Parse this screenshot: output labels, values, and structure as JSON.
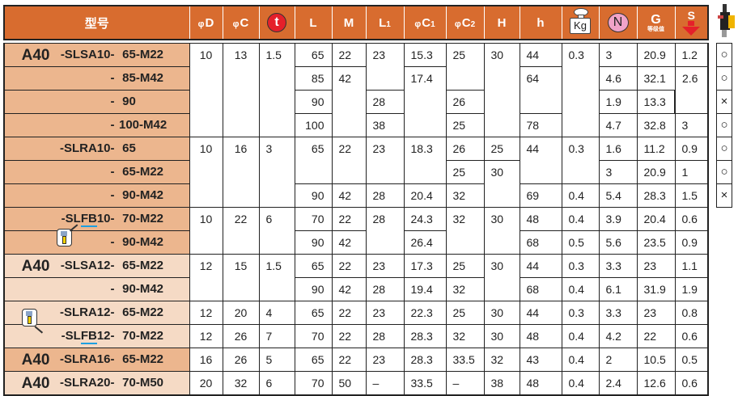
{
  "header": {
    "model": "型号",
    "phi": "φ",
    "D": "D",
    "C": "C",
    "t": "t",
    "L": "L",
    "M": "M",
    "L1_main": "L",
    "L1_sub": "1",
    "C1_main": "C",
    "C1_sub": "1",
    "C2_main": "C",
    "C2_sub": "2",
    "H": "H",
    "h": "h",
    "kg": "Kg",
    "N": "N",
    "G": "G",
    "G_sub": "等级值",
    "S": "S"
  },
  "icons": [
    "weight-kg-icon",
    "down-arrow-icon",
    "machine-tool-icon",
    "insert-tool-icon"
  ],
  "colors": {
    "header": "#d86c2f",
    "row_dark": "#ecb68e",
    "row_light": "#f5dac5",
    "underline": "#1ea0e0",
    "t_badge": "#e5202a",
    "n_badge": "#f0a3c8"
  },
  "rows": [
    {
      "shade": "dark",
      "prefix": "A40",
      "series": [
        "-SLSA10-"
      ],
      "size": " 65-M22",
      "cells": [
        "10",
        "13",
        "1.5",
        "65",
        "22",
        "23",
        "15.3",
        "25",
        "30",
        "44",
        "0.3",
        "3",
        "20.9",
        "1.2"
      ]
    },
    {
      "shade": "dark",
      "prefix": "",
      "series": [
        "-"
      ],
      "size": " 85-M42",
      "cells": [
        null,
        null,
        null,
        "85",
        "42",
        null,
        "17.4",
        null,
        null,
        "64",
        null,
        "4.6",
        "32.1",
        "2.6"
      ]
    },
    {
      "shade": "dark",
      "prefix": "",
      "series": [
        "-"
      ],
      "size": " 90",
      "cells": [
        null,
        null,
        null,
        "90",
        null,
        "28",
        null,
        "26",
        null,
        null,
        null,
        "1.9",
        "13.3",
        null
      ]
    },
    {
      "shade": "dark",
      "prefix": "",
      "series": [
        "-"
      ],
      "size": "100-M42",
      "cells": [
        null,
        null,
        null,
        "100",
        null,
        "38",
        null,
        "25",
        null,
        "78",
        null,
        "4.7",
        "32.8",
        "3"
      ]
    },
    {
      "shade": "dark",
      "prefix": "",
      "series": [
        "-SLRA10-"
      ],
      "size": " 65",
      "cells": [
        "10",
        "16",
        "3",
        "65",
        "22",
        "23",
        "18.3",
        "26",
        "25",
        "44",
        "0.3",
        "1.6",
        "11.2",
        "0.9"
      ]
    },
    {
      "shade": "dark",
      "prefix": "",
      "series": [
        "-"
      ],
      "size": " 65-M22",
      "cells": [
        null,
        null,
        null,
        null,
        null,
        null,
        null,
        "25",
        "30",
        null,
        null,
        "3",
        "20.9",
        "1"
      ]
    },
    {
      "shade": "dark",
      "prefix": "",
      "series": [
        "-"
      ],
      "size": " 90-M42",
      "cells": [
        null,
        null,
        null,
        "90",
        "42",
        "28",
        "20.4",
        "32",
        null,
        "69",
        "0.4",
        "5.4",
        "28.3",
        "1.5"
      ]
    },
    {
      "shade": "dark",
      "prefix": "",
      "series": [
        "-SL",
        "FB",
        "10-"
      ],
      "size": " 70-M22",
      "cells": [
        "10",
        "22",
        "6",
        "70",
        "22",
        "28",
        "24.3",
        "32",
        "30",
        "48",
        "0.4",
        "3.9",
        "20.4",
        "0.6"
      ]
    },
    {
      "shade": "dark",
      "prefix": "",
      "series": [
        "-"
      ],
      "size": " 90-M42",
      "cells": [
        null,
        null,
        null,
        "90",
        "42",
        null,
        "26.4",
        null,
        null,
        "68",
        "0.5",
        "5.6",
        "23.5",
        "0.9"
      ]
    },
    {
      "shade": "light",
      "prefix": "A40",
      "series": [
        "-SLSA12-"
      ],
      "size": " 65-M22",
      "cells": [
        "12",
        "15",
        "1.5",
        "65",
        "22",
        "23",
        "17.3",
        "25",
        "30",
        "44",
        "0.3",
        "3.3",
        "23",
        "1.1"
      ]
    },
    {
      "shade": "light",
      "prefix": "",
      "series": [
        "-"
      ],
      "size": " 90-M42",
      "cells": [
        null,
        null,
        null,
        "90",
        "42",
        "28",
        "19.4",
        "32",
        null,
        "68",
        "0.4",
        "6.1",
        "31.9",
        "1.9"
      ]
    },
    {
      "shade": "light",
      "prefix": "",
      "series": [
        "-SLRA12-"
      ],
      "size": " 65-M22",
      "cells": [
        "12",
        "20",
        "4",
        "65",
        "22",
        "23",
        "22.3",
        "25",
        "30",
        "44",
        "0.3",
        "3.3",
        "23",
        "0.8"
      ]
    },
    {
      "shade": "light",
      "prefix": "",
      "series": [
        "-SL",
        "FB",
        "12-"
      ],
      "size": " 70-M22",
      "cells": [
        "12",
        "26",
        "7",
        "70",
        "22",
        "28",
        "28.3",
        "32",
        "30",
        "48",
        "0.4",
        "4.2",
        "22",
        "0.6"
      ]
    },
    {
      "shade": "dark",
      "prefix": "A40",
      "series": [
        "-SLRA16-"
      ],
      "size": " 65-M22",
      "cells": [
        "16",
        "26",
        "5",
        "65",
        "22",
        "23",
        "28.3",
        "33.5",
        "32",
        "43",
        "0.4",
        "2",
        "10.5",
        "0.5"
      ]
    },
    {
      "shade": "light",
      "prefix": "A40",
      "series": [
        "-SLRA20-"
      ],
      "size": " 70-M50",
      "cells": [
        "20",
        "32",
        "6",
        "70",
        "50",
        "–",
        "33.5",
        "–",
        "38",
        "48",
        "0.4",
        "2.4",
        "12.6",
        "0.6"
      ]
    }
  ],
  "marks": [
    "○",
    null,
    null,
    null,
    "○",
    null,
    null,
    "×",
    "○",
    "○",
    null,
    "○",
    "×"
  ]
}
